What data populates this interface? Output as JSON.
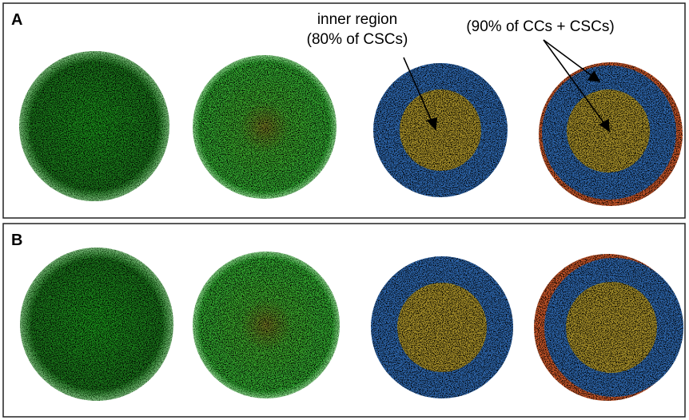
{
  "panels": [
    {
      "label": "A",
      "annotations": [
        "inner region",
        "(80% of CSCs)",
        "(90% of CCs + CSCs)"
      ]
    },
    {
      "label": "B"
    }
  ]
}
